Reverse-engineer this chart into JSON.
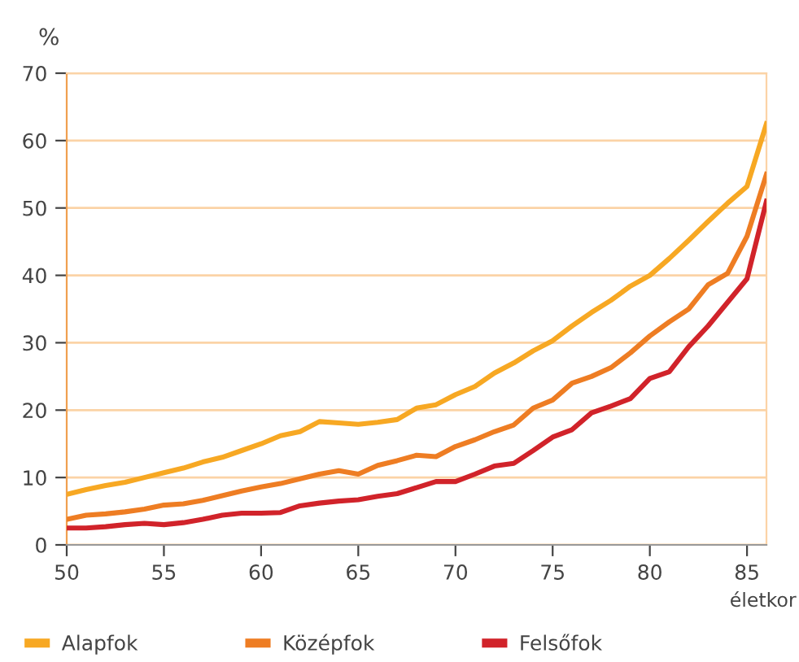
{
  "chart_data": {
    "type": "line",
    "ylabel": "%",
    "xlabel": "életkor",
    "x": [
      50,
      51,
      52,
      53,
      54,
      55,
      56,
      57,
      58,
      59,
      60,
      61,
      62,
      63,
      64,
      65,
      66,
      67,
      68,
      69,
      70,
      71,
      72,
      73,
      74,
      75,
      76,
      77,
      78,
      79,
      80,
      81,
      82,
      83,
      84,
      85,
      86
    ],
    "series": [
      {
        "name": "Alapfok",
        "color": "#f7a823",
        "values": [
          7.5,
          8.2,
          8.8,
          9.3,
          10,
          10.7,
          11.4,
          12.3,
          13,
          14,
          15,
          16.2,
          16.8,
          18.3,
          18.1,
          17.9,
          18.2,
          18.6,
          20.3,
          20.8,
          22.3,
          23.5,
          25.5,
          27,
          28.8,
          30.3,
          32.5,
          34.5,
          36.3,
          38.4,
          40,
          42.5,
          45.2,
          48,
          50.7,
          53.2,
          62.5
        ]
      },
      {
        "name": "Középfok",
        "color": "#ee7d23",
        "values": [
          3.8,
          4.4,
          4.6,
          4.9,
          5.3,
          5.9,
          6.1,
          6.6,
          7.3,
          8,
          8.6,
          9.1,
          9.8,
          10.5,
          11,
          10.5,
          11.8,
          12.5,
          13.3,
          13.1,
          14.6,
          15.6,
          16.8,
          17.8,
          20.3,
          21.5,
          24,
          25,
          26.3,
          28.5,
          31,
          33.1,
          35,
          38.6,
          40.3,
          45.8,
          55
        ]
      },
      {
        "name": "Felsőfok",
        "color": "#d1232a",
        "values": [
          2.5,
          2.5,
          2.7,
          3,
          3.2,
          3,
          3.3,
          3.8,
          4.4,
          4.7,
          4.7,
          4.8,
          5.8,
          6.2,
          6.5,
          6.7,
          7.2,
          7.6,
          8.5,
          9.4,
          9.4,
          10.5,
          11.7,
          12.1,
          14,
          16,
          17.1,
          19.6,
          20.6,
          21.7,
          24.7,
          25.7,
          29.4,
          32.5,
          36,
          39.5,
          51
        ]
      }
    ],
    "xlim": [
      50,
      86
    ],
    "xticks": [
      50,
      55,
      60,
      65,
      70,
      75,
      80,
      85
    ],
    "ylim": [
      0,
      70
    ],
    "yticks": [
      0,
      10,
      20,
      30,
      40,
      50,
      60,
      70
    ],
    "grid": "y",
    "legend": "bottom",
    "line_style": "solid"
  }
}
